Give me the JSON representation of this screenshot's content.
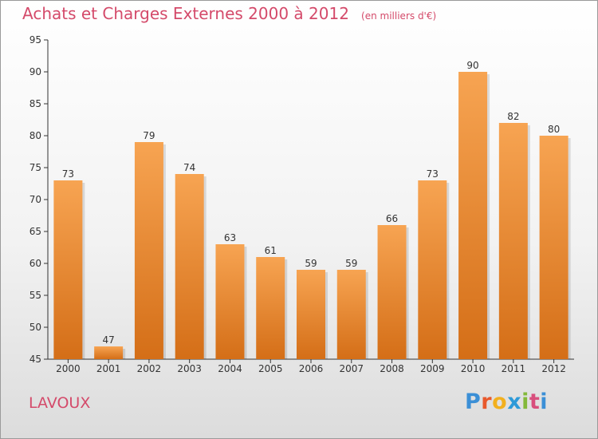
{
  "header": {
    "title": "Achats et Charges Externes 2000 à 2012",
    "subtitle": "(en milliers d'€)"
  },
  "footer": {
    "location": "LAVOUX",
    "logo_text": "Proxiti"
  },
  "colors": {
    "title": "#d44a6a",
    "bar_top": "#f7a452",
    "bar_bottom": "#d46e17",
    "logo_letters": [
      "#3b8fd6",
      "#e8592c",
      "#f2b01e",
      "#2d9ad8",
      "#83b93a",
      "#d84f7d",
      "#3b8fd6"
    ]
  },
  "chart_data": {
    "type": "bar",
    "categories": [
      "2000",
      "2001",
      "2002",
      "2003",
      "2004",
      "2005",
      "2006",
      "2007",
      "2008",
      "2009",
      "2010",
      "2011",
      "2012"
    ],
    "values": [
      73,
      47,
      79,
      74,
      63,
      61,
      59,
      59,
      66,
      73,
      90,
      82,
      80
    ],
    "ylim": [
      45,
      95
    ],
    "yticks": [
      45,
      50,
      55,
      60,
      65,
      70,
      75,
      80,
      85,
      90,
      95
    ],
    "grid": false,
    "legend": "none"
  }
}
